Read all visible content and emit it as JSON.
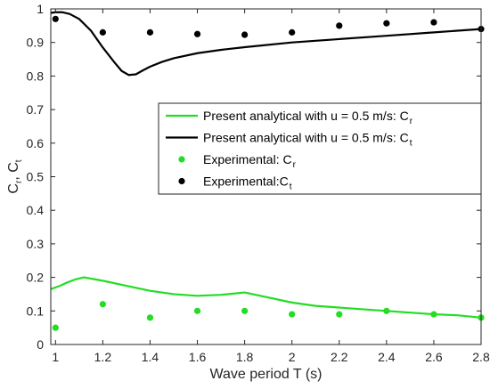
{
  "chart_data": {
    "type": "line",
    "xlabel": "Wave period T (s)",
    "ylabel": {
      "base": "C",
      "sub1": "r",
      "sep": ", C",
      "sub2": "t"
    },
    "xlim": [
      0.98,
      2.8
    ],
    "ylim": [
      0,
      1
    ],
    "xticks": [
      "1",
      "1.2",
      "1.4",
      "1.6",
      "1.8",
      "2",
      "2.2",
      "2.4",
      "2.6",
      "2.8"
    ],
    "xtick_values": [
      1,
      1.2,
      1.4,
      1.6,
      1.8,
      2,
      2.2,
      2.4,
      2.6,
      2.8
    ],
    "yticks": [
      "0",
      "0.1",
      "0.2",
      "0.3",
      "0.4",
      "0.5",
      "0.6",
      "0.7",
      "0.8",
      "0.9",
      "1"
    ],
    "ytick_values": [
      0,
      0.1,
      0.2,
      0.3,
      0.4,
      0.5,
      0.6,
      0.7,
      0.8,
      0.9,
      1
    ],
    "legend_position": "center-right",
    "series": [
      {
        "name": "Present analytical with u = 0.5 m/s: C",
        "name_sub": "r",
        "kind": "line",
        "color": "#22dd22",
        "x": [
          0.98,
          1.02,
          1.05,
          1.08,
          1.12,
          1.2,
          1.3,
          1.4,
          1.5,
          1.6,
          1.7,
          1.8,
          1.9,
          2.0,
          2.1,
          2.2,
          2.3,
          2.4,
          2.5,
          2.6,
          2.7,
          2.8
        ],
        "y": [
          0.165,
          0.175,
          0.185,
          0.193,
          0.2,
          0.19,
          0.175,
          0.16,
          0.15,
          0.145,
          0.148,
          0.155,
          0.14,
          0.125,
          0.115,
          0.11,
          0.105,
          0.1,
          0.095,
          0.09,
          0.087,
          0.08
        ]
      },
      {
        "name": "Present analytical with u = 0.5 m/s: C",
        "name_sub": "t",
        "kind": "line",
        "color": "#000000",
        "x": [
          0.98,
          1.0,
          1.03,
          1.06,
          1.1,
          1.15,
          1.2,
          1.25,
          1.28,
          1.31,
          1.34,
          1.37,
          1.4,
          1.45,
          1.5,
          1.6,
          1.7,
          1.8,
          2.0,
          2.2,
          2.4,
          2.6,
          2.8
        ],
        "y": [
          0.988,
          0.99,
          0.99,
          0.985,
          0.97,
          0.935,
          0.885,
          0.84,
          0.815,
          0.803,
          0.805,
          0.817,
          0.828,
          0.842,
          0.853,
          0.868,
          0.878,
          0.886,
          0.9,
          0.91,
          0.92,
          0.93,
          0.94
        ]
      },
      {
        "name": "Experimental: C",
        "name_sub": "r",
        "kind": "scatter",
        "color": "#22dd22",
        "x": [
          1.0,
          1.2,
          1.4,
          1.6,
          1.8,
          2.0,
          2.2,
          2.4,
          2.6,
          2.8
        ],
        "y": [
          0.05,
          0.12,
          0.08,
          0.1,
          0.1,
          0.09,
          0.09,
          0.1,
          0.09,
          0.08
        ]
      },
      {
        "name": "Experimental:C",
        "name_sub": "t",
        "kind": "scatter",
        "color": "#000000",
        "x": [
          1.0,
          1.2,
          1.4,
          1.6,
          1.8,
          2.0,
          2.2,
          2.4,
          2.6,
          2.8
        ],
        "y": [
          0.97,
          0.93,
          0.93,
          0.925,
          0.923,
          0.93,
          0.95,
          0.957,
          0.96,
          0.94
        ]
      }
    ]
  }
}
